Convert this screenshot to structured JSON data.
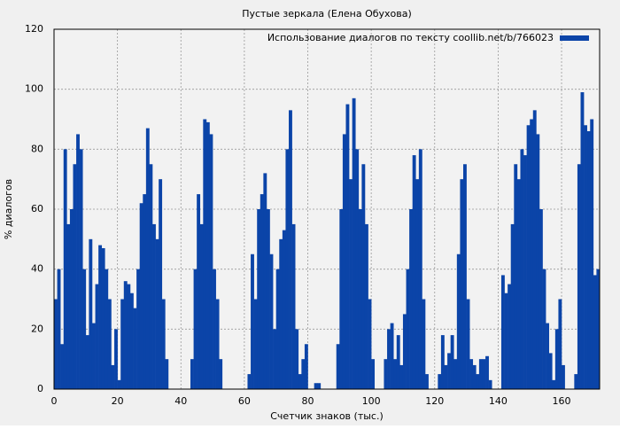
{
  "chart_data": {
    "type": "bar",
    "title": "Пустые зеркала (Елена Обухова)",
    "xlabel": "Счетчик знаков (тыс.)",
    "ylabel": "% диалогов",
    "series": [
      {
        "name": "Использование диалогов по тексту coollib.net/b/766023",
        "color": "#0b44a8",
        "values": [
          30,
          40,
          15,
          80,
          55,
          60,
          75,
          85,
          80,
          40,
          18,
          50,
          22,
          35,
          48,
          47,
          40,
          30,
          8,
          20,
          3,
          30,
          36,
          35,
          32,
          27,
          40,
          62,
          65,
          87,
          75,
          55,
          50,
          70,
          30,
          10,
          0,
          0,
          0,
          0,
          0,
          0,
          0,
          10,
          40,
          65,
          55,
          90,
          89,
          85,
          40,
          30,
          10,
          0,
          0,
          0,
          0,
          0,
          0,
          0,
          0,
          5,
          45,
          30,
          60,
          65,
          72,
          60,
          45,
          20,
          40,
          50,
          53,
          80,
          93,
          55,
          20,
          5,
          10,
          15,
          0,
          0,
          2,
          2,
          0,
          0,
          0,
          0,
          0,
          15,
          60,
          85,
          95,
          70,
          97,
          80,
          60,
          75,
          55,
          30,
          10,
          0,
          0,
          0,
          10,
          20,
          22,
          10,
          18,
          8,
          25,
          40,
          60,
          78,
          70,
          80,
          30,
          5,
          0,
          0,
          0,
          5,
          18,
          8,
          12,
          18,
          10,
          45,
          70,
          75,
          30,
          10,
          8,
          5,
          10,
          10,
          11,
          3,
          0,
          0,
          0,
          38,
          32,
          35,
          55,
          75,
          70,
          80,
          78,
          88,
          90,
          93,
          85,
          60,
          40,
          22,
          12,
          3,
          20,
          30,
          8,
          0,
          0,
          0,
          5,
          75,
          99,
          88,
          86,
          90,
          38,
          40
        ]
      }
    ],
    "x": [
      0,
      1,
      2,
      3,
      4,
      5,
      6,
      7,
      8,
      9,
      10,
      11,
      12,
      13,
      14,
      15,
      16,
      17,
      18,
      19,
      20,
      21,
      22,
      23,
      24,
      25,
      26,
      27,
      28,
      29,
      30,
      31,
      32,
      33,
      34,
      35,
      36,
      37,
      38,
      39,
      40,
      41,
      42,
      43,
      44,
      45,
      46,
      47,
      48,
      49,
      50,
      51,
      52,
      53,
      54,
      55,
      56,
      57,
      58,
      59,
      60,
      61,
      62,
      63,
      64,
      65,
      66,
      67,
      68,
      69,
      70,
      71,
      72,
      73,
      74,
      75,
      76,
      77,
      78,
      79,
      80,
      81,
      82,
      83,
      84,
      85,
      86,
      87,
      88,
      89,
      90,
      91,
      92,
      93,
      94,
      95,
      96,
      97,
      98,
      99,
      100,
      101,
      102,
      103,
      104,
      105,
      106,
      107,
      108,
      109,
      110,
      111,
      112,
      113,
      114,
      115,
      116,
      117,
      118,
      119,
      120,
      121,
      122,
      123,
      124,
      125,
      126,
      127,
      128,
      129,
      130,
      131,
      132,
      133,
      134,
      135,
      136,
      137,
      138,
      139,
      140,
      141,
      142,
      143,
      144,
      145,
      146,
      147,
      148,
      149,
      150,
      151,
      152,
      153,
      154,
      155,
      156,
      157,
      158,
      159,
      160,
      161,
      162,
      163,
      164,
      165,
      166,
      167,
      168,
      169,
      170,
      171
    ],
    "xlim": [
      0,
      172
    ],
    "xticks": [
      0,
      20,
      40,
      60,
      80,
      100,
      120,
      140,
      160
    ],
    "ylim": [
      0,
      120
    ],
    "yticks": [
      0,
      20,
      40,
      60,
      80,
      100,
      120
    ],
    "grid": true,
    "legend": "top-right"
  }
}
